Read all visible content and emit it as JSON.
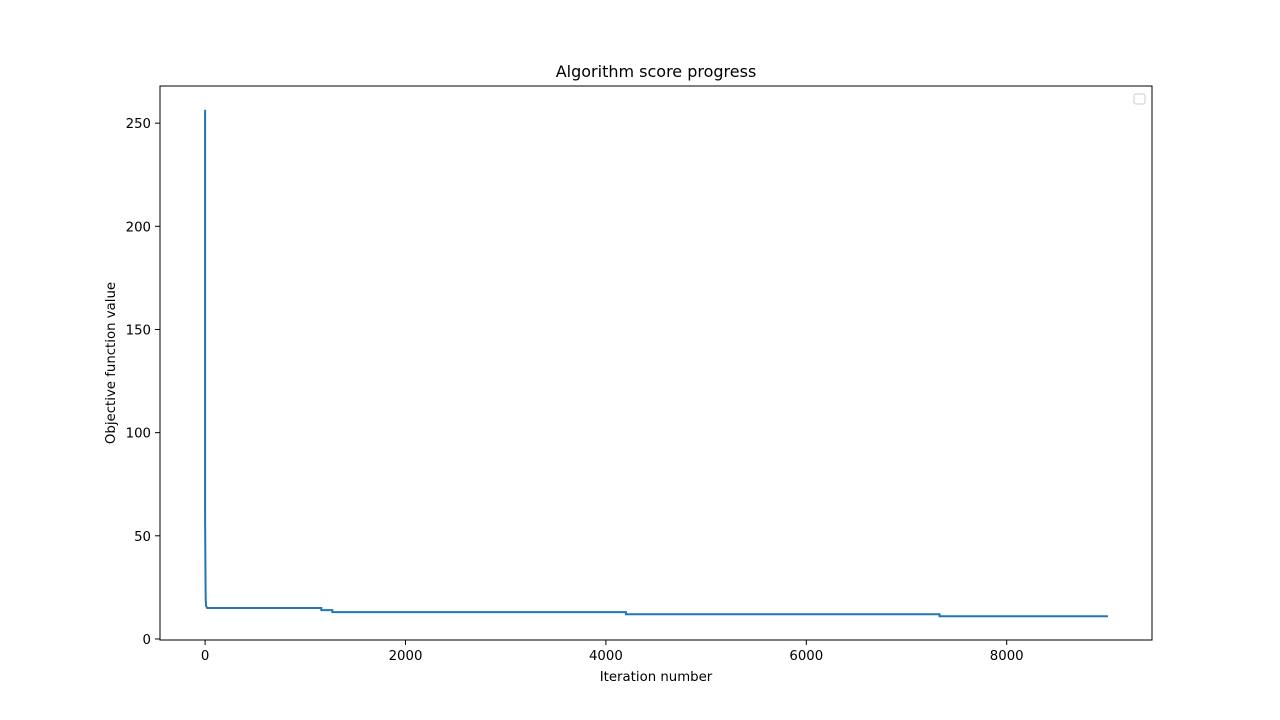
{
  "chart_data": {
    "type": "line",
    "title": "Algorithm score progress",
    "xlabel": "Iteration number",
    "ylabel": "Objective function value",
    "xlim": [
      -450,
      9450
    ],
    "ylim": [
      -0.5,
      268
    ],
    "xticks": [
      0,
      2000,
      4000,
      6000,
      8000
    ],
    "xtick_labels": [
      "0",
      "2000",
      "4000",
      "6000",
      "8000"
    ],
    "yticks": [
      0,
      50,
      100,
      150,
      200,
      250
    ],
    "ytick_labels": [
      "0",
      "50",
      "100",
      "150",
      "200",
      "250"
    ],
    "grid": false,
    "legend": {
      "visible": true,
      "placement": "upper right",
      "entries": []
    },
    "series": [
      {
        "color": "#1f77b4",
        "x": [
          0,
          0,
          4,
          6,
          8,
          10,
          15,
          20,
          30,
          1160,
          1160,
          1270,
          1270,
          4200,
          4200,
          7330,
          7330,
          9000
        ],
        "y": [
          256,
          60,
          30,
          20,
          17,
          16,
          15.5,
          15,
          15,
          15,
          14,
          14,
          13,
          13,
          12,
          12,
          11,
          11
        ]
      }
    ]
  }
}
